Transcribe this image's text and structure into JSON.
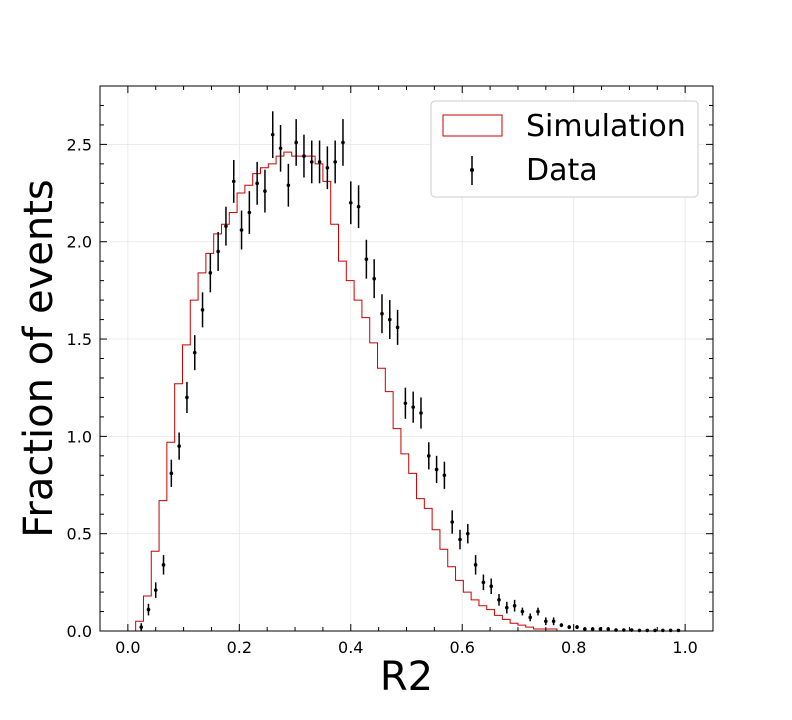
{
  "chart_data": {
    "type": "histogram",
    "xlabel": "R2",
    "ylabel": "Fraction of events",
    "xlim": [
      -0.05,
      1.05
    ],
    "ylim": [
      0.0,
      2.8
    ],
    "xticks": [
      "0.0",
      "0.2",
      "0.4",
      "0.6",
      "0.8",
      "1.0"
    ],
    "yticks": [
      "0.0",
      "0.5",
      "1.0",
      "1.5",
      "2.0",
      "2.5"
    ],
    "grid": true,
    "legend_position": "top-right",
    "legend": {
      "simulation_label": "Simulation",
      "data_label": "Data"
    },
    "colors": {
      "simulation": "#cc0000",
      "data": "#000000"
    },
    "bin_width": 0.014,
    "series": [
      {
        "name": "Simulation",
        "style": "step",
        "x_start": [
          0.014,
          0.028,
          0.042,
          0.056,
          0.07,
          0.084,
          0.098,
          0.112,
          0.126,
          0.14,
          0.154,
          0.168,
          0.182,
          0.196,
          0.21,
          0.224,
          0.238,
          0.252,
          0.266,
          0.28,
          0.294,
          0.308,
          0.322,
          0.336,
          0.35,
          0.364,
          0.378,
          0.392,
          0.406,
          0.42,
          0.434,
          0.448,
          0.462,
          0.476,
          0.49,
          0.504,
          0.518,
          0.532,
          0.546,
          0.56,
          0.574,
          0.588,
          0.602,
          0.616,
          0.63,
          0.644,
          0.658,
          0.672,
          0.686,
          0.7,
          0.714,
          0.728,
          0.742,
          0.756,
          0.77,
          0.784,
          0.798,
          0.812,
          0.826,
          0.84,
          0.854
        ],
        "values": [
          0.05,
          0.18,
          0.41,
          0.67,
          0.97,
          1.27,
          1.47,
          1.7,
          1.84,
          1.94,
          2.04,
          2.09,
          2.15,
          2.25,
          2.29,
          2.35,
          2.38,
          2.4,
          2.44,
          2.46,
          2.44,
          2.44,
          2.44,
          2.4,
          2.31,
          2.09,
          1.9,
          1.8,
          1.7,
          1.61,
          1.48,
          1.35,
          1.23,
          1.04,
          0.91,
          0.81,
          0.68,
          0.63,
          0.52,
          0.42,
          0.33,
          0.26,
          0.2,
          0.16,
          0.13,
          0.11,
          0.08,
          0.06,
          0.04,
          0.03,
          0.02,
          0.01,
          0.01,
          0.01,
          0.0,
          0.0,
          0.0,
          0.0,
          0.0,
          0.0,
          0.0
        ]
      },
      {
        "name": "Data",
        "style": "errorbar",
        "x": [
          0.024,
          0.037,
          0.05,
          0.064,
          0.078,
          0.092,
          0.106,
          0.12,
          0.134,
          0.148,
          0.162,
          0.176,
          0.19,
          0.204,
          0.218,
          0.232,
          0.246,
          0.26,
          0.274,
          0.288,
          0.302,
          0.316,
          0.33,
          0.344,
          0.358,
          0.372,
          0.386,
          0.4,
          0.414,
          0.428,
          0.442,
          0.456,
          0.47,
          0.484,
          0.498,
          0.512,
          0.526,
          0.54,
          0.554,
          0.568,
          0.582,
          0.596,
          0.61,
          0.624,
          0.638,
          0.652,
          0.666,
          0.68,
          0.694,
          0.708,
          0.722,
          0.736,
          0.75,
          0.764,
          0.778,
          0.792,
          0.806,
          0.82,
          0.834,
          0.848,
          0.862,
          0.876,
          0.89,
          0.904,
          0.918,
          0.932,
          0.946,
          0.96,
          0.974,
          0.988
        ],
        "y": [
          0.02,
          0.11,
          0.21,
          0.34,
          0.81,
          0.95,
          1.2,
          1.43,
          1.65,
          1.84,
          1.95,
          2.08,
          2.31,
          2.06,
          2.15,
          2.3,
          2.26,
          2.55,
          2.48,
          2.29,
          2.51,
          2.44,
          2.41,
          2.41,
          2.38,
          2.41,
          2.51,
          2.2,
          2.18,
          1.91,
          1.81,
          1.63,
          1.6,
          1.56,
          1.17,
          1.15,
          1.12,
          0.9,
          0.83,
          0.8,
          0.56,
          0.47,
          0.5,
          0.34,
          0.25,
          0.23,
          0.16,
          0.12,
          0.13,
          0.1,
          0.07,
          0.1,
          0.05,
          0.05,
          0.03,
          0.02,
          0.02,
          0.01,
          0.01,
          0.01,
          0.01,
          0.005,
          0.005,
          0.005,
          0.003,
          0.003,
          0.003,
          0.003,
          0.003,
          0.003
        ],
        "err": [
          0.02,
          0.03,
          0.04,
          0.05,
          0.07,
          0.07,
          0.08,
          0.09,
          0.09,
          0.1,
          0.1,
          0.1,
          0.11,
          0.1,
          0.11,
          0.11,
          0.11,
          0.12,
          0.12,
          0.11,
          0.12,
          0.11,
          0.11,
          0.11,
          0.11,
          0.11,
          0.12,
          0.11,
          0.11,
          0.1,
          0.1,
          0.1,
          0.1,
          0.09,
          0.08,
          0.08,
          0.08,
          0.07,
          0.07,
          0.07,
          0.06,
          0.05,
          0.05,
          0.05,
          0.04,
          0.04,
          0.03,
          0.03,
          0.03,
          0.02,
          0.02,
          0.02,
          0.02,
          0.02,
          0.01,
          0.01,
          0.01,
          0.01,
          0.01,
          0.01,
          0.01,
          0.005,
          0.005,
          0.005,
          0.005,
          0.005,
          0.005,
          0.005,
          0.005,
          0.005
        ]
      }
    ]
  }
}
